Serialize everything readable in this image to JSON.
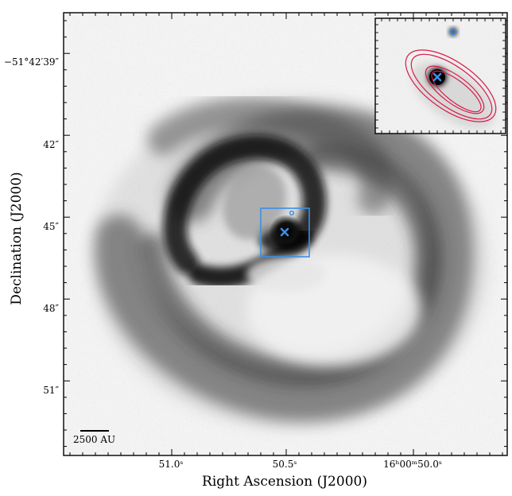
{
  "axes": {
    "xlabel": "Right Ascension (J2000)",
    "ylabel": "Declination (J2000)",
    "x_ticks": [
      "51.0ˢ",
      "50.5ˢ",
      "16ʰ00ᵐ50.0ˢ"
    ],
    "y_ticks": [
      "−51°42′39″",
      "42″",
      "45″",
      "48″",
      "51″"
    ]
  },
  "scale_bar": {
    "label": "2500 AU"
  },
  "colors": {
    "marker": "#3a8fe8",
    "contour": "#d81b4a",
    "frame": "#000000"
  },
  "markers": {
    "primary": "x-marker",
    "secondary": "circle-marker"
  },
  "image": {
    "colormap": "gray_r",
    "subject": "spiral-dust-structure"
  }
}
